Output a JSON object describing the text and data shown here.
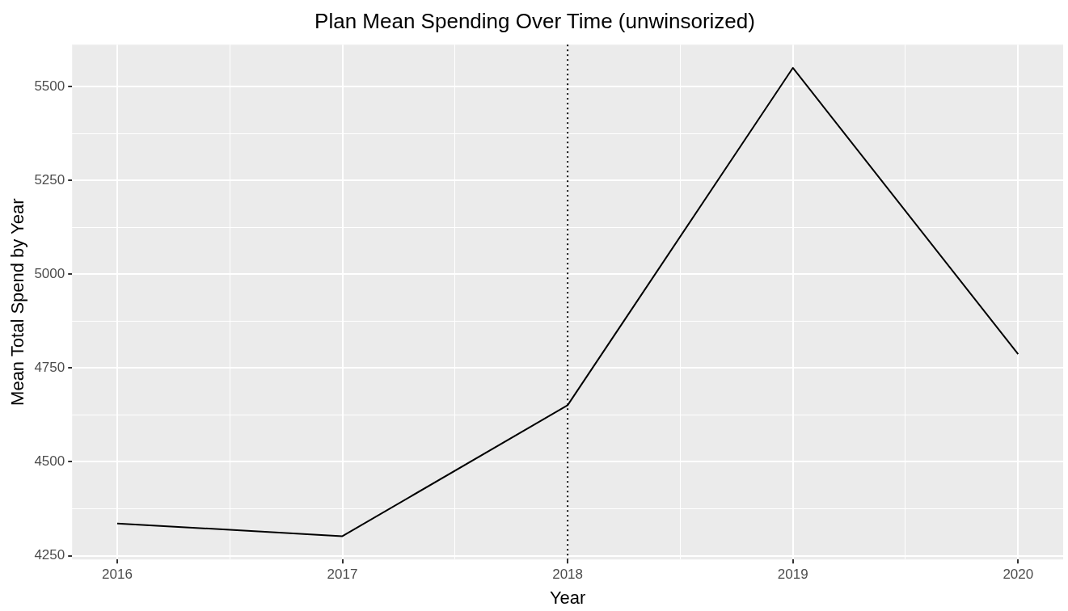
{
  "chart_data": {
    "type": "line",
    "title": "Plan Mean Spending Over Time (unwinsorized)",
    "xlabel": "Year",
    "ylabel": "Mean Total Spend by Year",
    "x": [
      2016,
      2017,
      2018,
      2019,
      2020
    ],
    "series": [
      {
        "color": "#000000",
        "values": [
          4336,
          4302,
          4651,
          5550,
          4787
        ]
      }
    ],
    "xlim": [
      2015.8,
      2020.2
    ],
    "xticks": [
      2016,
      {
        "value": 2016.5,
        "label": null
      },
      2017,
      {
        "value": 2017.5,
        "label": null
      },
      2018,
      {
        "value": 2018.5,
        "label": null
      },
      2019,
      {
        "value": 2019.5,
        "label": null
      },
      2020
    ],
    "ylim": [
      4240,
      5612
    ],
    "yticks": [
      4250,
      {
        "value": 4375,
        "label": null
      },
      4500,
      {
        "value": 4625,
        "label": null
      },
      4750,
      {
        "value": 4875,
        "label": null
      },
      5000,
      {
        "value": 5125,
        "label": null
      },
      5250,
      {
        "value": 5375,
        "label": null
      },
      5500
    ],
    "ref_lines": [
      {
        "axis": "x",
        "value": 2018,
        "color": "#000000",
        "line_style": "dotted"
      }
    ],
    "grid": true,
    "legend": false,
    "marker": "none",
    "line_style": "solid"
  }
}
